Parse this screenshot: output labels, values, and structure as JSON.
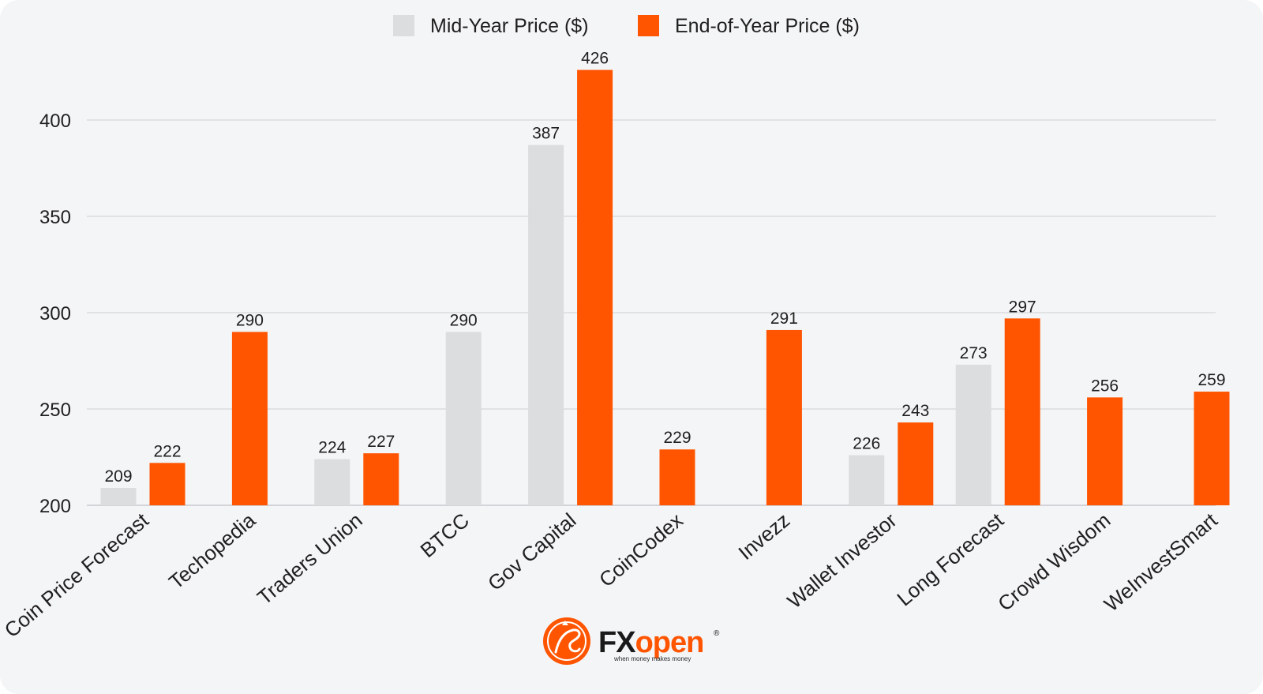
{
  "chart_data": {
    "type": "bar",
    "categories": [
      "Coin Price Forecast",
      "Techopedia",
      "Traders Union",
      "BTCC",
      "Gov Capital",
      "CoinCodex",
      "Invezz",
      "Wallet Investor",
      "Long Forecast",
      "Crowd Wisdom",
      "WeInvestSmart"
    ],
    "series": [
      {
        "name": "Mid-Year Price ($)",
        "color": "#dcdddf",
        "values": [
          209,
          null,
          224,
          290,
          387,
          null,
          null,
          226,
          273,
          null,
          null
        ]
      },
      {
        "name": "End-of-Year Price ($)",
        "color": "#ff5500",
        "values": [
          222,
          290,
          227,
          null,
          426,
          229,
          291,
          243,
          297,
          256,
          259
        ]
      }
    ],
    "ylim": [
      200,
      440
    ],
    "yticks": [
      200,
      250,
      300,
      350,
      400
    ],
    "title": "",
    "xlabel": "",
    "ylabel": "",
    "grid": true,
    "legend_position": "top-center"
  },
  "brand": {
    "name_fx": "FX",
    "name_open": "open",
    "registered": "®",
    "tagline": "when money makes money",
    "fx_color": "#1a1a1a",
    "open_color": "#ff5500"
  }
}
